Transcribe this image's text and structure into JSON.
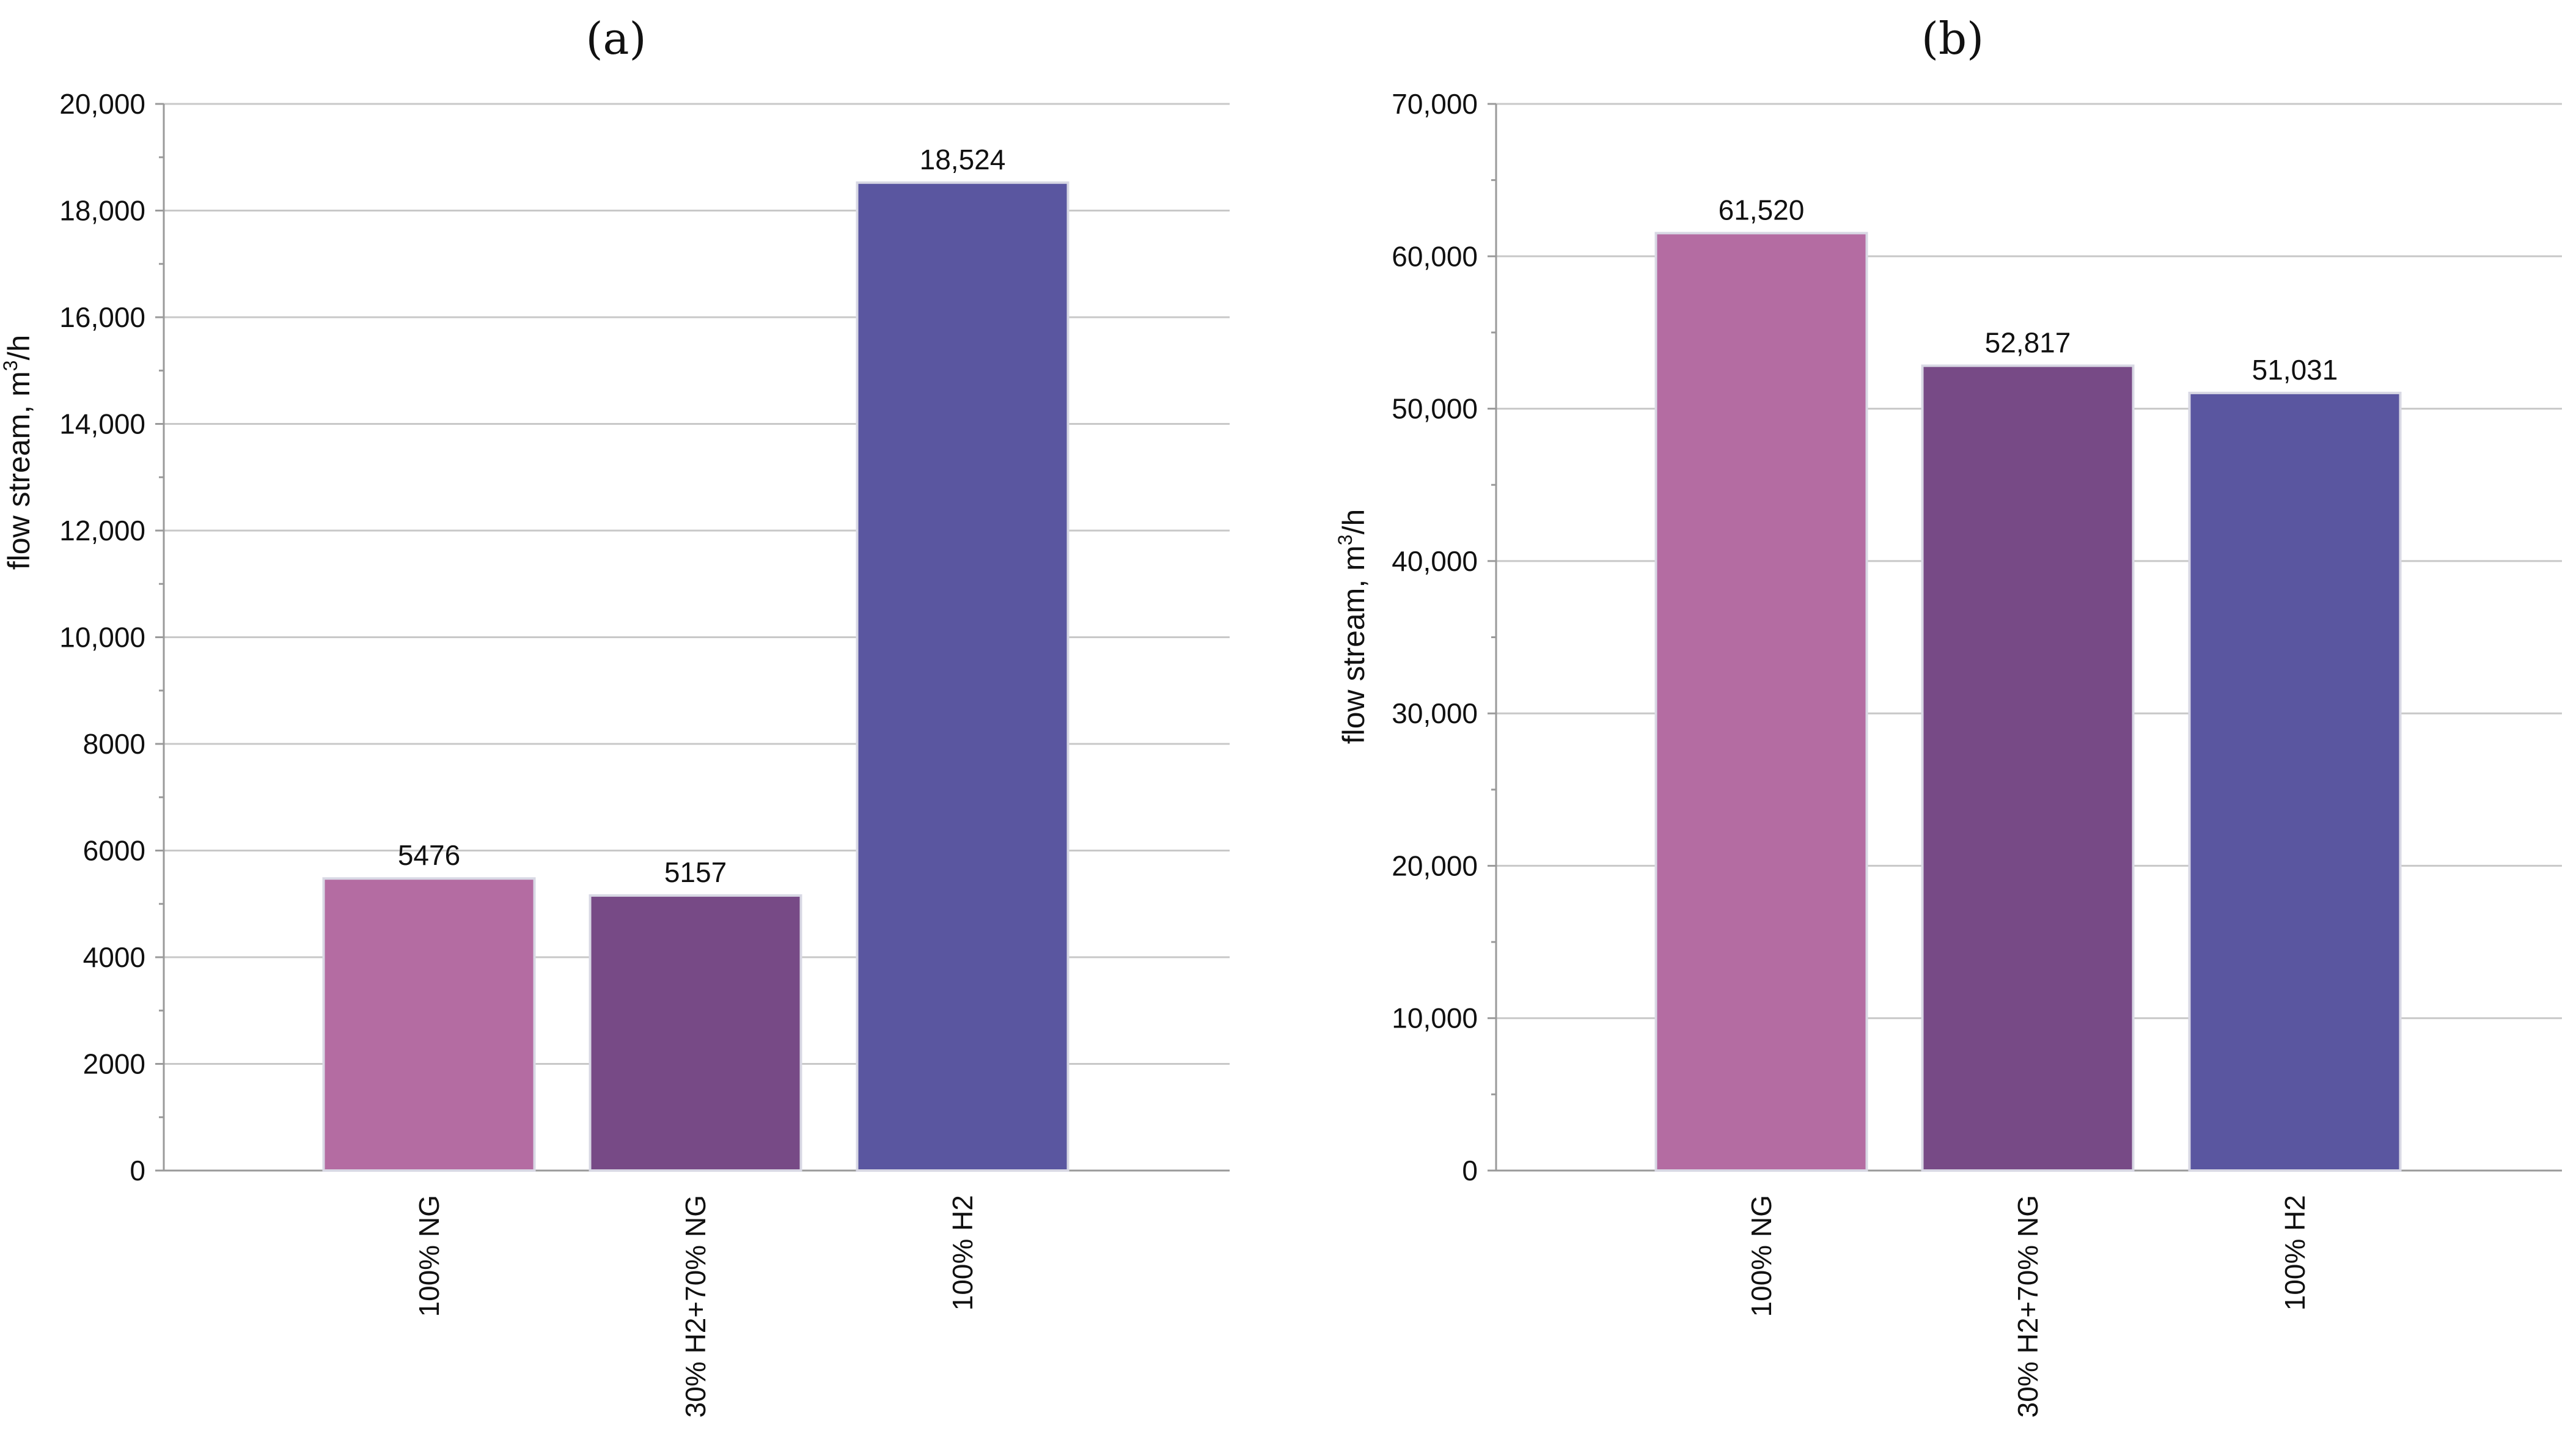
{
  "chart_data": [
    {
      "type": "bar",
      "panel_label": "(a)",
      "ylabel_prefix": "flow stream, m",
      "ylabel_sup": "3",
      "ylabel_suffix": "/h",
      "ylim": [
        0,
        20000
      ],
      "y_ticks": [
        0,
        2000,
        4000,
        6000,
        8000,
        10000,
        12000,
        14000,
        16000,
        18000,
        20000
      ],
      "y_tick_labels": [
        "0",
        "2000",
        "4000",
        "6000",
        "8000",
        "10,000",
        "12,000",
        "14,000",
        "16,000",
        "18,000",
        "20,000"
      ],
      "categories": [
        "100% NG",
        "30% H2+70% NG",
        "100% H2"
      ],
      "values": [
        5476,
        5157,
        18524
      ],
      "value_labels": [
        "5476",
        "5157",
        "18,524"
      ],
      "colors": [
        "#b46ca2",
        "#774a86",
        "#5a56a0"
      ],
      "grid": true
    },
    {
      "type": "bar",
      "panel_label": "(b)",
      "ylabel_prefix": "flow stream, m",
      "ylabel_sup": "3",
      "ylabel_suffix": "/h",
      "ylim": [
        0,
        70000
      ],
      "y_ticks": [
        0,
        10000,
        20000,
        30000,
        40000,
        50000,
        60000,
        70000
      ],
      "y_tick_labels": [
        "0",
        "10,000",
        "20,000",
        "30,000",
        "40,000",
        "50,000",
        "60,000",
        "70,000"
      ],
      "categories": [
        "100% NG",
        "30% H2+70% NG",
        "100% H2"
      ],
      "values": [
        61520,
        52817,
        51031
      ],
      "value_labels": [
        "61,520",
        "52,817",
        "51,031"
      ],
      "colors": [
        "#b46ca2",
        "#774a86",
        "#5a56a0"
      ],
      "grid": true
    }
  ]
}
